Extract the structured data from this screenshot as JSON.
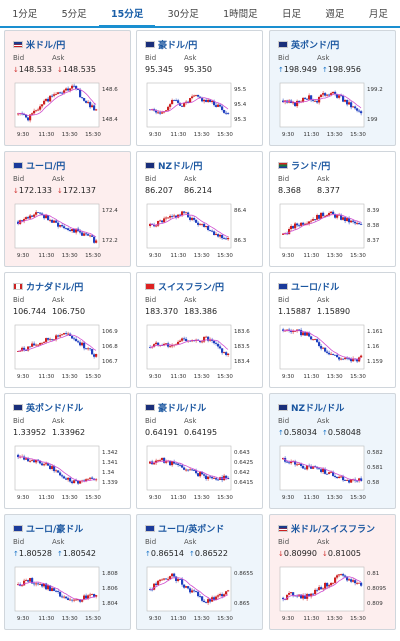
{
  "tabs": [
    {
      "label": "1分足",
      "active": false
    },
    {
      "label": "5分足",
      "active": false
    },
    {
      "label": "15分足",
      "active": true
    },
    {
      "label": "30分足",
      "active": false
    },
    {
      "label": "1時間足",
      "active": false
    },
    {
      "label": "日足",
      "active": false
    },
    {
      "label": "週足",
      "active": false
    },
    {
      "label": "月足",
      "active": false
    }
  ],
  "labels": {
    "bid": "Bid",
    "ask": "Ask"
  },
  "colors": {
    "up_arrow": "#1a74c8",
    "down_arrow": "#d0302e",
    "candle_up": "#cc2020",
    "candle_down": "#2040c0",
    "ma": "#d050d0"
  },
  "cards": [
    {
      "title": "米ドル/円",
      "flag": "us",
      "state": "down",
      "bid": "148.533",
      "ask": "148.535",
      "dir": "down",
      "ylabels": [
        "148.6",
        "148.4"
      ],
      "xlabels": [
        "9:30",
        "11:30",
        "13:30",
        "15:30"
      ],
      "seed": 1,
      "trend": [
        0.3,
        0.2,
        0.5,
        0.7,
        0.8,
        0.9,
        0.6,
        0.4
      ]
    },
    {
      "title": "豪ドル/円",
      "flag": "au",
      "state": "none",
      "bid": "95.345",
      "ask": "95.350",
      "dir": "none",
      "ylabels": [
        "95.5",
        "95.4",
        "95.3"
      ],
      "xlabels": [
        "9:30",
        "11:30",
        "13:30",
        "15:30"
      ],
      "seed": 2,
      "trend": [
        0.4,
        0.3,
        0.6,
        0.5,
        0.7,
        0.6,
        0.5,
        0.3
      ]
    },
    {
      "title": "英ポンド/円",
      "flag": "gb",
      "state": "up",
      "bid": "198.949",
      "ask": "198.956",
      "dir": "up",
      "ylabels": [
        "199.2",
        "199"
      ],
      "xlabels": [
        "9:30",
        "11:30",
        "13:30",
        "15:30"
      ],
      "seed": 3,
      "trend": [
        0.6,
        0.5,
        0.7,
        0.6,
        0.8,
        0.7,
        0.5,
        0.3
      ]
    },
    {
      "title": "ユーロ/円",
      "flag": "eu",
      "state": "down",
      "bid": "172.133",
      "ask": "172.137",
      "dir": "down",
      "ylabels": [
        "172.4",
        "172.2"
      ],
      "xlabels": [
        "9:30",
        "11:30",
        "13:30",
        "15:30"
      ],
      "seed": 4,
      "trend": [
        0.6,
        0.7,
        0.8,
        0.6,
        0.5,
        0.4,
        0.3,
        0.15
      ]
    },
    {
      "title": "NZドル/円",
      "flag": "nz",
      "state": "none",
      "bid": "86.207",
      "ask": "86.214",
      "dir": "none",
      "ylabels": [
        "86.4",
        "86.3"
      ],
      "xlabels": [
        "9:30",
        "11:30",
        "13:30",
        "15:30"
      ],
      "seed": 5,
      "trend": [
        0.5,
        0.6,
        0.7,
        0.8,
        0.6,
        0.5,
        0.3,
        0.2
      ]
    },
    {
      "title": "ランド/円",
      "flag": "za",
      "state": "none",
      "bid": "8.368",
      "ask": "8.377",
      "dir": "none",
      "ylabels": [
        "8.39",
        "8.38",
        "8.37"
      ],
      "xlabels": [
        "9:30",
        "11:30",
        "13:30",
        "15:30"
      ],
      "seed": 6,
      "trend": [
        0.3,
        0.5,
        0.6,
        0.7,
        0.8,
        0.7,
        0.6,
        0.5
      ]
    },
    {
      "title": "カナダドル/円",
      "flag": "ca",
      "state": "none",
      "bid": "106.744",
      "ask": "106.750",
      "dir": "none",
      "ylabels": [
        "106.9",
        "106.8",
        "106.7"
      ],
      "xlabels": [
        "9:30",
        "11:30",
        "13:30",
        "15:30"
      ],
      "seed": 7,
      "trend": [
        0.4,
        0.5,
        0.6,
        0.7,
        0.8,
        0.7,
        0.5,
        0.3
      ]
    },
    {
      "title": "スイスフラン/円",
      "flag": "ch",
      "state": "none",
      "bid": "183.370",
      "ask": "183.386",
      "dir": "none",
      "ylabels": [
        "183.6",
        "183.5",
        "183.4"
      ],
      "xlabels": [
        "9:30",
        "11:30",
        "13:30",
        "15:30"
      ],
      "seed": 8,
      "trend": [
        0.5,
        0.6,
        0.5,
        0.7,
        0.6,
        0.7,
        0.5,
        0.3
      ]
    },
    {
      "title": "ユーロ/ドル",
      "flag": "eu",
      "state": "none",
      "bid": "1.15887",
      "ask": "1.15890",
      "dir": "none",
      "ylabels": [
        "1.161",
        "1.16",
        "1.159"
      ],
      "xlabels": [
        "9:30",
        "11:30",
        "13:30",
        "15:30"
      ],
      "seed": 9,
      "trend": [
        0.9,
        0.85,
        0.8,
        0.6,
        0.4,
        0.25,
        0.2,
        0.25
      ]
    },
    {
      "title": "英ポンド/ドル",
      "flag": "gb",
      "state": "none",
      "bid": "1.33952",
      "ask": "1.33962",
      "dir": "none",
      "ylabels": [
        "1.342",
        "1.341",
        "1.34",
        "1.339"
      ],
      "xlabels": [
        "9:30",
        "11:30",
        "13:30",
        "15:30"
      ],
      "seed": 10,
      "trend": [
        0.8,
        0.7,
        0.6,
        0.5,
        0.3,
        0.2,
        0.2,
        0.3
      ]
    },
    {
      "title": "豪ドル/ドル",
      "flag": "au",
      "state": "none",
      "bid": "0.64191",
      "ask": "0.64195",
      "dir": "none",
      "ylabels": [
        "0.643",
        "0.6425",
        "0.642",
        "0.6415"
      ],
      "xlabels": [
        "9:30",
        "11:30",
        "13:30",
        "15:30"
      ],
      "seed": 11,
      "trend": [
        0.6,
        0.7,
        0.6,
        0.5,
        0.4,
        0.3,
        0.25,
        0.3
      ]
    },
    {
      "title": "NZドル/ドル",
      "flag": "nz",
      "state": "up",
      "bid": "0.58034",
      "ask": "0.58048",
      "dir": "up",
      "ylabels": [
        "0.582",
        "0.581",
        "0.58"
      ],
      "xlabels": [
        "9:30",
        "11:30",
        "13:30",
        "15:30"
      ],
      "seed": 12,
      "trend": [
        0.7,
        0.6,
        0.5,
        0.5,
        0.4,
        0.3,
        0.2,
        0.25
      ]
    },
    {
      "title": "ユーロ/豪ドル",
      "flag": "eu",
      "state": "up",
      "bid": "1.80528",
      "ask": "1.80542",
      "dir": "up",
      "ylabels": [
        "1.808",
        "1.806",
        "1.804"
      ],
      "xlabels": [
        "9:30",
        "11:30",
        "13:30",
        "15:30"
      ],
      "seed": 13,
      "trend": [
        0.6,
        0.7,
        0.6,
        0.5,
        0.3,
        0.2,
        0.3,
        0.4
      ]
    },
    {
      "title": "ユーロ/英ポンド",
      "flag": "eu",
      "state": "up",
      "bid": "0.86514",
      "ask": "0.86522",
      "dir": "up",
      "ylabels": [
        "0.8655",
        "0.865"
      ],
      "xlabels": [
        "9:30",
        "11:30",
        "13:30",
        "15:30"
      ],
      "seed": 14,
      "trend": [
        0.5,
        0.7,
        0.8,
        0.6,
        0.4,
        0.2,
        0.3,
        0.5
      ]
    },
    {
      "title": "米ドル/スイスフラン",
      "flag": "us",
      "state": "down",
      "bid": "0.80990",
      "ask": "0.81005",
      "dir": "down",
      "ylabels": [
        "0.81",
        "0.8095",
        "0.809"
      ],
      "xlabels": [
        "9:30",
        "11:30",
        "13:30",
        "15:30"
      ],
      "seed": 15,
      "trend": [
        0.3,
        0.4,
        0.3,
        0.5,
        0.6,
        0.8,
        0.7,
        0.6
      ]
    }
  ]
}
